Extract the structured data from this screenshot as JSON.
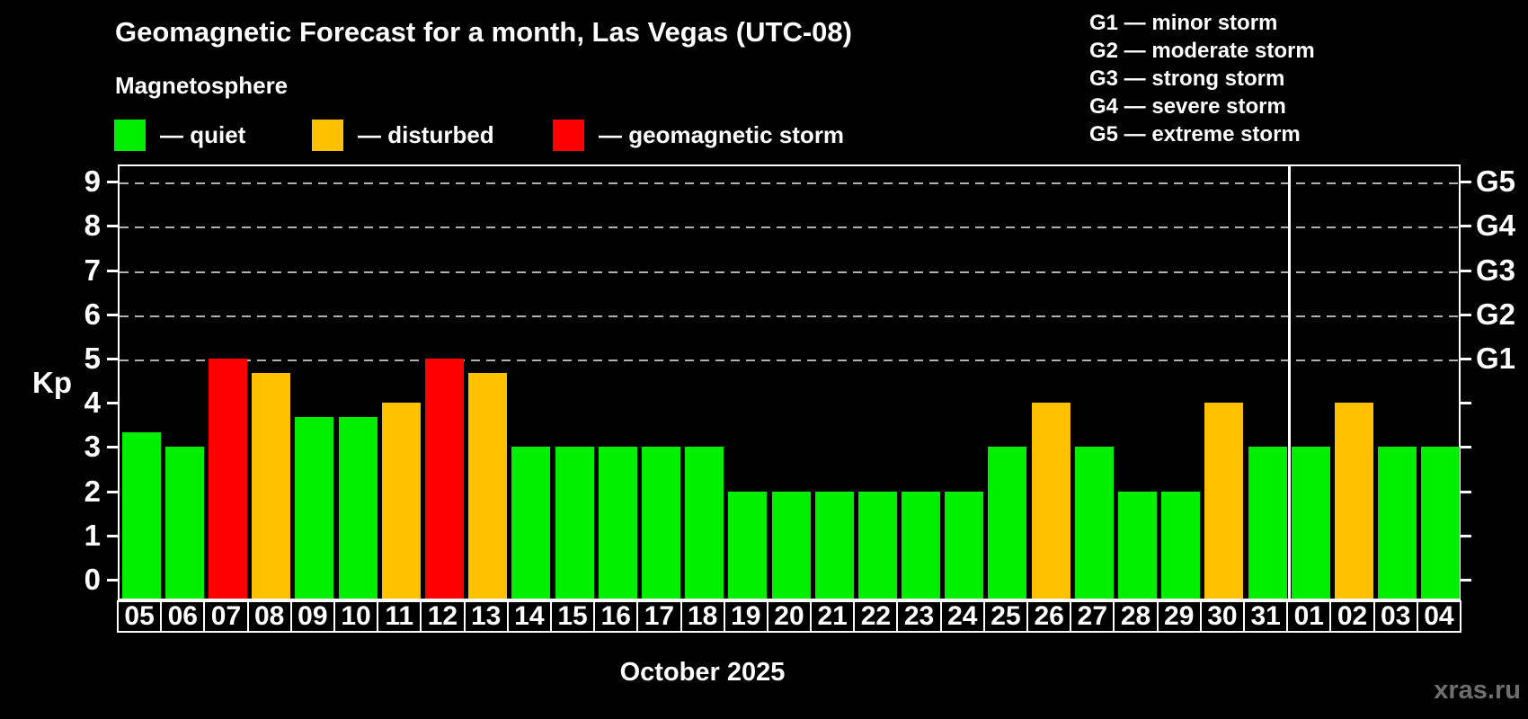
{
  "header": {
    "title": "Geomagnetic Forecast for a month, Las Vegas (UTC-08)",
    "subtitle": "Magnetosphere"
  },
  "legend": {
    "items": [
      {
        "key": "quiet",
        "label": "— quiet"
      },
      {
        "key": "disturbed",
        "label": "— disturbed"
      },
      {
        "key": "storm",
        "label": "— geomagnetic storm"
      }
    ]
  },
  "g_legend": {
    "items": [
      "G1 — minor storm",
      "G2 — moderate storm",
      "G3 — strong storm",
      "G4 — severe storm",
      "G5 — extreme storm"
    ]
  },
  "colors": {
    "quiet": "#00ee00",
    "disturbed": "#ffc000",
    "storm": "#ff0000",
    "gridline": "#b0b0b0",
    "axis": "#ffffff",
    "background": "#000000",
    "watermark": "#6f6f6f"
  },
  "chart_data": {
    "type": "bar",
    "ylabel": "Kp",
    "month_caption": "October 2025",
    "ylim": [
      0,
      9
    ],
    "yticks": [
      0,
      1,
      2,
      3,
      4,
      5,
      6,
      7,
      8,
      9
    ],
    "gridlines_at": [
      5,
      6,
      7,
      8,
      9
    ],
    "right_axis_labels": [
      {
        "value": 5,
        "label": "G1"
      },
      {
        "value": 6,
        "label": "G2"
      },
      {
        "value": 7,
        "label": "G3"
      },
      {
        "value": 8,
        "label": "G4"
      },
      {
        "value": 9,
        "label": "G5"
      }
    ],
    "separator_after_index": 26,
    "days": [
      {
        "label": "05",
        "value": 3.33,
        "state": "quiet"
      },
      {
        "label": "06",
        "value": 3,
        "state": "quiet"
      },
      {
        "label": "07",
        "value": 5,
        "state": "storm"
      },
      {
        "label": "08",
        "value": 4.67,
        "state": "disturbed"
      },
      {
        "label": "09",
        "value": 3.67,
        "state": "quiet"
      },
      {
        "label": "10",
        "value": 3.67,
        "state": "quiet"
      },
      {
        "label": "11",
        "value": 4,
        "state": "disturbed"
      },
      {
        "label": "12",
        "value": 5,
        "state": "storm"
      },
      {
        "label": "13",
        "value": 4.67,
        "state": "disturbed"
      },
      {
        "label": "14",
        "value": 3,
        "state": "quiet"
      },
      {
        "label": "15",
        "value": 3,
        "state": "quiet"
      },
      {
        "label": "16",
        "value": 3,
        "state": "quiet"
      },
      {
        "label": "17",
        "value": 3,
        "state": "quiet"
      },
      {
        "label": "18",
        "value": 3,
        "state": "quiet"
      },
      {
        "label": "19",
        "value": 2,
        "state": "quiet"
      },
      {
        "label": "20",
        "value": 2,
        "state": "quiet"
      },
      {
        "label": "21",
        "value": 2,
        "state": "quiet"
      },
      {
        "label": "22",
        "value": 2,
        "state": "quiet"
      },
      {
        "label": "23",
        "value": 2,
        "state": "quiet"
      },
      {
        "label": "24",
        "value": 2,
        "state": "quiet"
      },
      {
        "label": "25",
        "value": 3,
        "state": "quiet"
      },
      {
        "label": "26",
        "value": 4,
        "state": "disturbed"
      },
      {
        "label": "27",
        "value": 3,
        "state": "quiet"
      },
      {
        "label": "28",
        "value": 2,
        "state": "quiet"
      },
      {
        "label": "29",
        "value": 2,
        "state": "quiet"
      },
      {
        "label": "30",
        "value": 4,
        "state": "disturbed"
      },
      {
        "label": "31",
        "value": 3,
        "state": "quiet"
      },
      {
        "label": "01",
        "value": 3,
        "state": "quiet"
      },
      {
        "label": "02",
        "value": 4,
        "state": "disturbed"
      },
      {
        "label": "03",
        "value": 3,
        "state": "quiet"
      },
      {
        "label": "04",
        "value": 3,
        "state": "quiet"
      }
    ]
  },
  "watermark": "xras.ru"
}
